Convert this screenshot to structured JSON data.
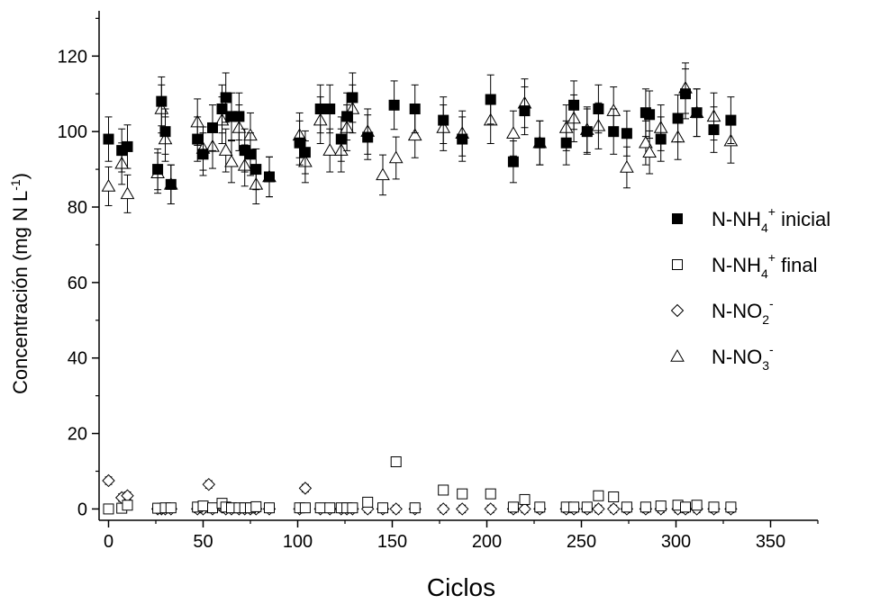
{
  "chart_data": {
    "type": "scatter",
    "title": "",
    "xlabel": "Ciclos",
    "ylabel": "Concentración (mg N L-1)",
    "xlim": [
      -5,
      375
    ],
    "ylim": [
      -3,
      132
    ],
    "xticks": [
      0,
      50,
      100,
      150,
      200,
      250,
      300,
      350
    ],
    "yticks": [
      0,
      20,
      40,
      60,
      80,
      100,
      120
    ],
    "grid": false,
    "legend_position": "right",
    "series": [
      {
        "name": "N-NH4+ inicial",
        "marker": "filled-square",
        "error_bars": true,
        "x": [
          0,
          7,
          10,
          26,
          28,
          30,
          33,
          47,
          50,
          55,
          60,
          62,
          65,
          69,
          72,
          75,
          78,
          85,
          101,
          104,
          112,
          117,
          123,
          126,
          129,
          137,
          151,
          162,
          177,
          187,
          202,
          214,
          220,
          228,
          242,
          246,
          253,
          259,
          267,
          274,
          284,
          286,
          292,
          301,
          305,
          311,
          320,
          329
        ],
        "y": [
          98,
          95,
          96,
          90,
          108,
          100,
          86,
          98,
          94,
          101,
          106,
          109,
          104,
          104,
          95,
          94,
          90,
          88,
          97,
          94.5,
          106,
          106,
          98,
          104,
          109,
          98.5,
          107,
          106,
          103,
          98,
          108.5,
          92,
          105.5,
          97,
          97,
          107,
          100,
          106,
          100,
          99.5,
          105,
          104.5,
          98,
          103.5,
          110,
          105,
          100.5,
          103
        ]
      },
      {
        "name": "N-NH4+ final",
        "marker": "open-square",
        "error_bars": false,
        "x": [
          0,
          7,
          10,
          26,
          30,
          33,
          47,
          50,
          55,
          60,
          62,
          65,
          69,
          72,
          75,
          78,
          85,
          101,
          104,
          112,
          117,
          123,
          126,
          129,
          137,
          145,
          152,
          162,
          177,
          187,
          202,
          214,
          220,
          228,
          242,
          246,
          253,
          259,
          267,
          274,
          284,
          292,
          301,
          305,
          311,
          320,
          329
        ],
        "y": [
          0,
          0.2,
          1,
          0.2,
          0.3,
          0.3,
          0.5,
          0.8,
          0.3,
          1.5,
          0.5,
          0.3,
          0.3,
          0.3,
          0.3,
          0.6,
          0.3,
          0.3,
          0.3,
          0.3,
          0.3,
          0.3,
          0.3,
          0.3,
          1.8,
          0.3,
          12.5,
          0.3,
          5,
          4,
          4,
          0.5,
          2.5,
          0.5,
          0.5,
          0.5,
          0.5,
          3.5,
          3.2,
          0.5,
          0.5,
          0.8,
          1,
          0.5,
          1,
          0.5,
          0.5
        ]
      },
      {
        "name": "N-NO2-",
        "marker": "open-diamond",
        "error_bars": true,
        "x": [
          0,
          7,
          10,
          26,
          28,
          30,
          33,
          47,
          50,
          53,
          55,
          60,
          62,
          65,
          69,
          72,
          75,
          78,
          85,
          101,
          104,
          112,
          117,
          123,
          126,
          129,
          137,
          145,
          152,
          162,
          177,
          187,
          202,
          214,
          220,
          228,
          242,
          246,
          253,
          259,
          267,
          274,
          284,
          292,
          301,
          305,
          311,
          320,
          329
        ],
        "y": [
          7.5,
          3,
          3.5,
          0,
          0,
          0,
          0,
          0,
          0,
          6.5,
          0,
          0.5,
          0,
          0,
          0,
          0,
          0,
          0,
          0,
          0,
          5.5,
          0,
          0,
          0,
          0,
          0,
          0,
          0,
          0,
          0,
          0,
          0,
          0,
          0,
          0,
          0,
          0,
          0,
          0,
          0,
          0,
          0,
          0,
          0,
          0,
          0,
          0,
          0,
          0
        ]
      },
      {
        "name": "N-NO3-",
        "marker": "open-triangle",
        "error_bars": true,
        "x": [
          0,
          7,
          10,
          26,
          28,
          30,
          33,
          47,
          50,
          55,
          60,
          62,
          65,
          69,
          72,
          75,
          78,
          85,
          101,
          104,
          112,
          117,
          123,
          126,
          129,
          137,
          145,
          152,
          162,
          177,
          187,
          202,
          214,
          220,
          228,
          242,
          246,
          253,
          259,
          267,
          274,
          284,
          286,
          292,
          301,
          305,
          311,
          320,
          329
        ],
        "y": [
          85.5,
          91.5,
          83.5,
          89,
          106,
          98,
          86,
          102.5,
          95.5,
          96,
          103,
          95,
          92,
          101,
          91,
          99,
          86,
          88,
          99,
          92,
          103,
          95,
          95,
          101,
          106,
          100,
          88.5,
          93,
          99,
          101,
          99.5,
          103,
          99.5,
          107.5,
          97,
          101,
          103.5,
          100.5,
          101.5,
          105.5,
          90.5,
          97,
          94.5,
          101,
          98.5,
          111.5,
          105,
          104,
          97.5
        ]
      }
    ]
  },
  "legend": {
    "items": [
      {
        "base": "N-NH",
        "sub": "4",
        "sup": "+",
        "tail": " inicial",
        "marker": "filled-square"
      },
      {
        "base": "N-NH",
        "sub": "4",
        "sup": "+",
        "tail": " final",
        "marker": "open-square"
      },
      {
        "base": "N-NO",
        "sub": "2",
        "sup": "-",
        "tail": "",
        "marker": "open-diamond"
      },
      {
        "base": "N-NO",
        "sub": "3",
        "sup": "-",
        "tail": "",
        "marker": "open-triangle"
      }
    ]
  },
  "ylabel_parts": {
    "main": "Concentración (mg N L",
    "sup": "-1",
    "close": ")"
  }
}
